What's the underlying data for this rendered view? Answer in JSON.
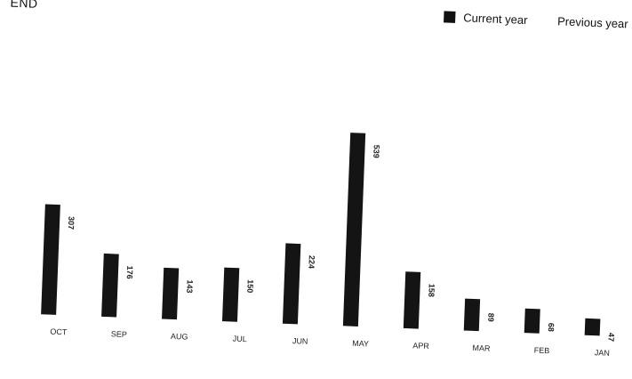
{
  "legend": {
    "title": "END",
    "current_label": "Current year",
    "previous_label": "Previous year",
    "current_color": "#141414"
  },
  "chart_data": {
    "type": "bar",
    "title": "",
    "xlabel": "",
    "ylabel": "",
    "categories": [
      "OCT",
      "SEP",
      "AUG",
      "JUL",
      "JUN",
      "MAY",
      "APR",
      "MAR",
      "FEB",
      "JAN"
    ],
    "series": [
      {
        "name": "Current year",
        "values": [
          307,
          176,
          143,
          150,
          224,
          539,
          158,
          89,
          68,
          47
        ]
      }
    ],
    "ylim": [
      0,
      600
    ],
    "grid": false,
    "legend_position": "top-right"
  }
}
